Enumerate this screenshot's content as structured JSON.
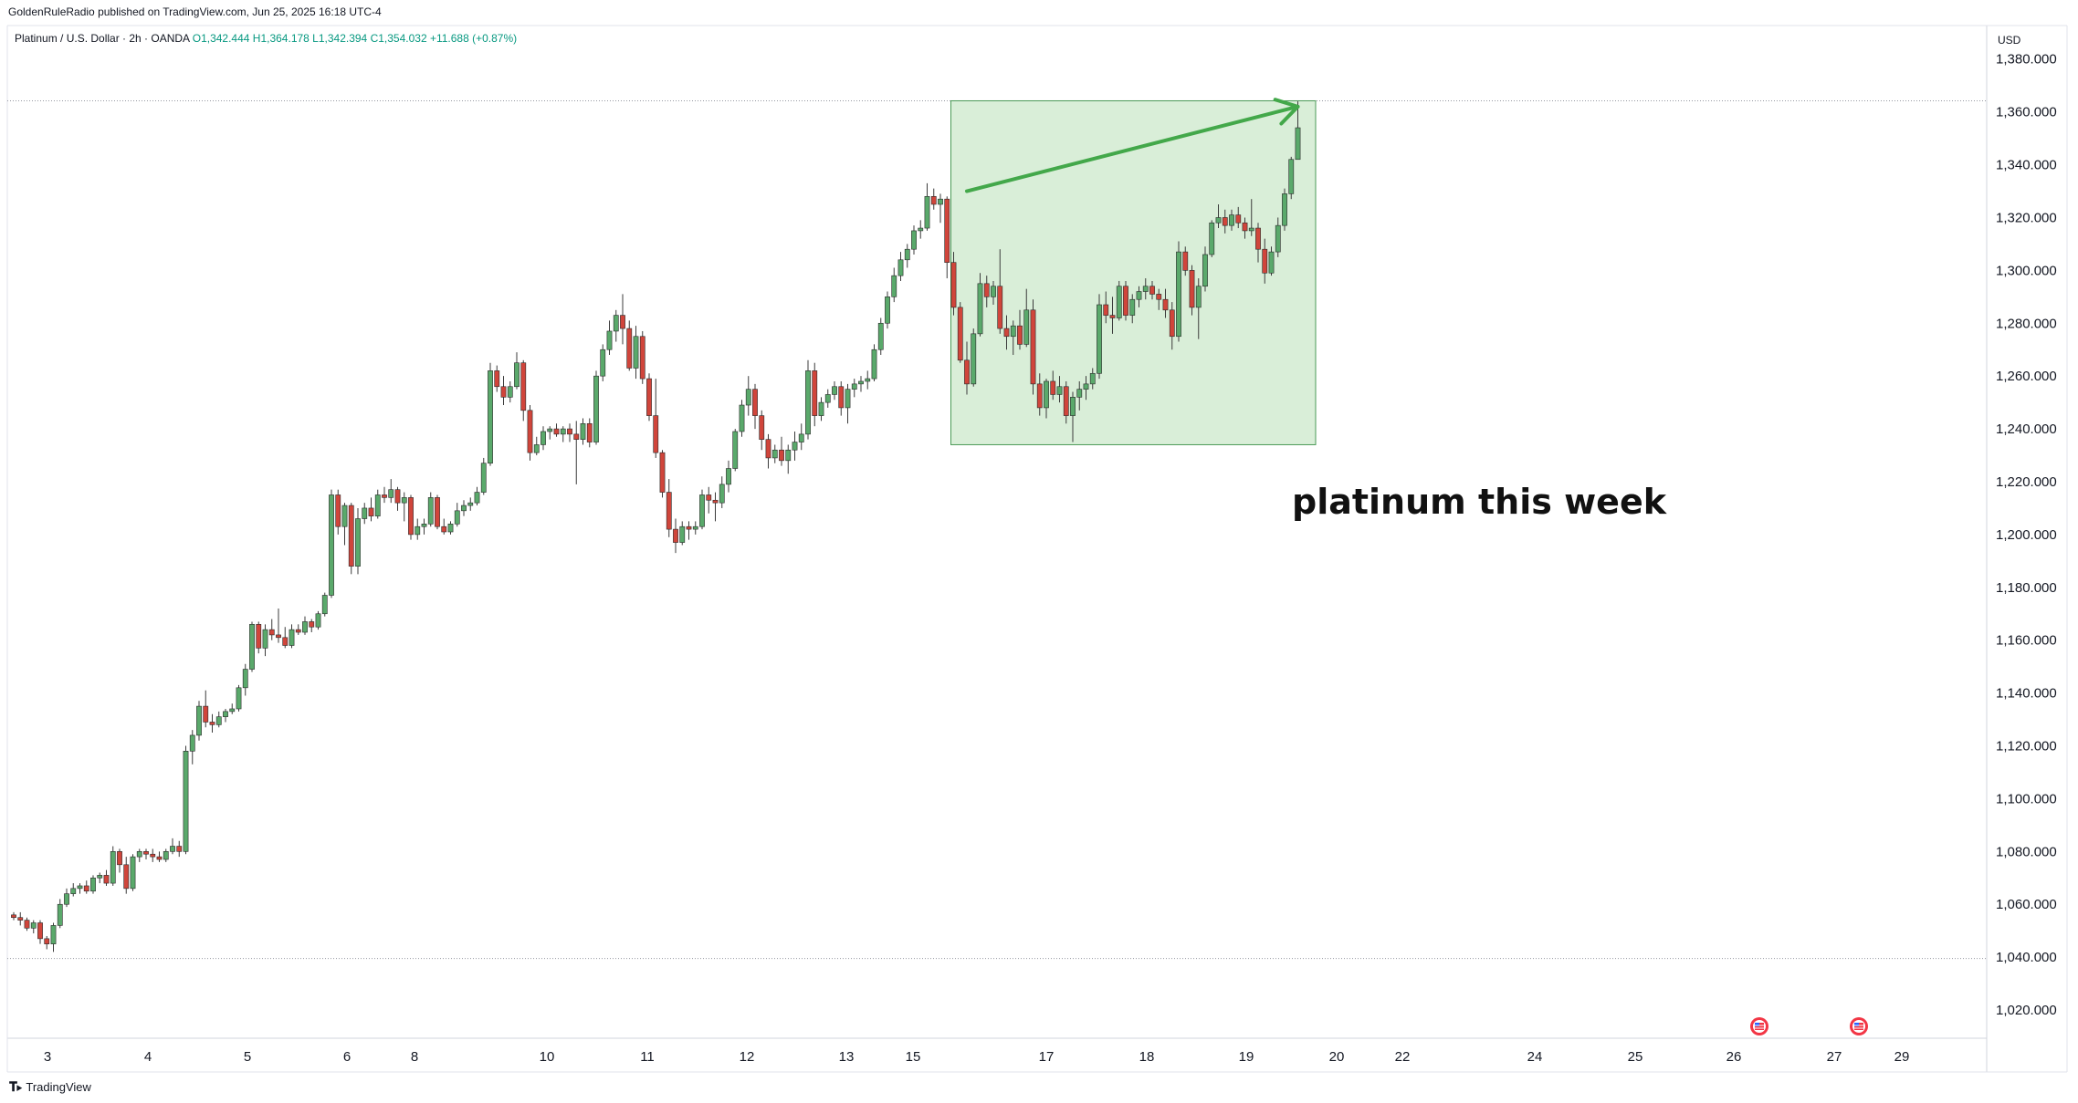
{
  "header": {
    "credit": "GoldenRuleRadio published on TradingView.com, Jun 25, 2025 16:18 UTC-4",
    "symbol_prefix": "Platinum / U.S. Dollar · 2h · OANDA",
    "ohlc": "O1,342.444  H1,364.178  L1,342.394  C1,354.032  +11.688 (+0.87%)"
  },
  "footer": {
    "brand": "TradingView",
    "brand_icon": "tradingview-logo-icon"
  },
  "colors": {
    "up": "#089981",
    "down": "#f23645",
    "up_fill": "#5aa96b",
    "down_fill": "#d0453b",
    "highlight_fill": "#d9eed8",
    "highlight_border": "#4a9a56",
    "arrow": "#43a84a"
  },
  "chart_data": {
    "type": "candlestick",
    "currency_label": "USD",
    "y_ticks": [
      "1,020.000",
      "1,040.000",
      "1,060.000",
      "1,080.000",
      "1,100.000",
      "1,120.000",
      "1,140.000",
      "1,160.000",
      "1,180.000",
      "1,200.000",
      "1,220.000",
      "1,240.000",
      "1,260.000",
      "1,280.000",
      "1,300.000",
      "1,320.000",
      "1,340.000",
      "1,360.000",
      "1,380.000"
    ],
    "ylim": [
      1010,
      1392
    ],
    "x_ticks": [
      "3",
      "4",
      "5",
      "6",
      "8",
      "10",
      "11",
      "12",
      "13",
      "15",
      "17",
      "18",
      "19",
      "20",
      "22",
      "24",
      "25",
      "26",
      "27",
      "29"
    ],
    "reference_lines": [
      1364.2,
      1039.5
    ],
    "candles": [
      [
        1056,
        1057,
        1054,
        1055
      ],
      [
        1055,
        1057,
        1052,
        1054
      ],
      [
        1054,
        1055,
        1050,
        1051
      ],
      [
        1051,
        1054,
        1049,
        1053
      ],
      [
        1053,
        1054,
        1045,
        1047
      ],
      [
        1047,
        1048,
        1043,
        1045
      ],
      [
        1045,
        1053,
        1042,
        1052
      ],
      [
        1052,
        1062,
        1051,
        1060
      ],
      [
        1060,
        1066,
        1059,
        1064
      ],
      [
        1064,
        1068,
        1063,
        1066
      ],
      [
        1066,
        1068,
        1064,
        1067
      ],
      [
        1067,
        1069,
        1064,
        1065
      ],
      [
        1065,
        1071,
        1064,
        1070
      ],
      [
        1070,
        1072,
        1068,
        1071
      ],
      [
        1071,
        1073,
        1067,
        1068
      ],
      [
        1068,
        1082,
        1067,
        1080
      ],
      [
        1080,
        1081,
        1072,
        1075
      ],
      [
        1075,
        1078,
        1064,
        1066
      ],
      [
        1066,
        1079,
        1065,
        1078
      ],
      [
        1078,
        1081,
        1076,
        1080
      ],
      [
        1080,
        1081,
        1077,
        1079
      ],
      [
        1079,
        1081,
        1076,
        1078
      ],
      [
        1078,
        1080,
        1076,
        1077
      ],
      [
        1077,
        1081,
        1076,
        1080
      ],
      [
        1080,
        1085,
        1079,
        1082
      ],
      [
        1082,
        1084,
        1078,
        1080
      ],
      [
        1080,
        1120,
        1079,
        1118
      ],
      [
        1118,
        1126,
        1113,
        1124
      ],
      [
        1124,
        1137,
        1122,
        1135
      ],
      [
        1135,
        1141,
        1127,
        1129
      ],
      [
        1129,
        1132,
        1125,
        1128
      ],
      [
        1128,
        1133,
        1127,
        1131
      ],
      [
        1131,
        1134,
        1129,
        1133
      ],
      [
        1133,
        1136,
        1132,
        1134
      ],
      [
        1134,
        1143,
        1133,
        1142
      ],
      [
        1142,
        1151,
        1139,
        1149
      ],
      [
        1149,
        1167,
        1148,
        1166
      ],
      [
        1166,
        1167,
        1155,
        1157
      ],
      [
        1157,
        1166,
        1154,
        1164
      ],
      [
        1164,
        1168,
        1160,
        1162
      ],
      [
        1162,
        1172,
        1159,
        1161
      ],
      [
        1161,
        1165,
        1157,
        1158
      ],
      [
        1158,
        1166,
        1157,
        1164
      ],
      [
        1164,
        1166,
        1162,
        1163
      ],
      [
        1163,
        1169,
        1162,
        1167
      ],
      [
        1167,
        1168,
        1163,
        1165
      ],
      [
        1165,
        1171,
        1164,
        1170
      ],
      [
        1170,
        1178,
        1169,
        1177
      ],
      [
        1177,
        1217,
        1176,
        1215
      ],
      [
        1215,
        1217,
        1200,
        1203
      ],
      [
        1203,
        1212,
        1196,
        1211
      ],
      [
        1211,
        1212,
        1185,
        1188
      ],
      [
        1188,
        1210,
        1185,
        1206
      ],
      [
        1206,
        1212,
        1204,
        1210
      ],
      [
        1210,
        1214,
        1205,
        1207
      ],
      [
        1207,
        1217,
        1206,
        1215
      ],
      [
        1215,
        1218,
        1212,
        1214
      ],
      [
        1214,
        1221,
        1212,
        1217
      ],
      [
        1217,
        1218,
        1209,
        1212
      ],
      [
        1212,
        1216,
        1205,
        1214
      ],
      [
        1214,
        1215,
        1198,
        1200
      ],
      [
        1200,
        1206,
        1198,
        1203
      ],
      [
        1203,
        1206,
        1200,
        1204
      ],
      [
        1204,
        1216,
        1203,
        1214
      ],
      [
        1214,
        1215,
        1202,
        1203
      ],
      [
        1203,
        1206,
        1200,
        1201
      ],
      [
        1201,
        1205,
        1200,
        1204
      ],
      [
        1204,
        1212,
        1203,
        1209
      ],
      [
        1209,
        1213,
        1207,
        1211
      ],
      [
        1211,
        1214,
        1209,
        1212
      ],
      [
        1212,
        1218,
        1211,
        1216
      ],
      [
        1216,
        1229,
        1215,
        1227
      ],
      [
        1227,
        1265,
        1226,
        1262
      ],
      [
        1262,
        1264,
        1254,
        1256
      ],
      [
        1256,
        1260,
        1249,
        1252
      ],
      [
        1252,
        1258,
        1250,
        1256
      ],
      [
        1256,
        1269,
        1255,
        1265
      ],
      [
        1265,
        1266,
        1243,
        1247
      ],
      [
        1247,
        1249,
        1228,
        1231
      ],
      [
        1231,
        1237,
        1230,
        1234
      ],
      [
        1234,
        1241,
        1232,
        1239
      ],
      [
        1239,
        1241,
        1236,
        1240
      ],
      [
        1240,
        1242,
        1237,
        1238
      ],
      [
        1238,
        1241,
        1235,
        1240
      ],
      [
        1240,
        1242,
        1235,
        1238
      ],
      [
        1238,
        1243,
        1219,
        1236
      ],
      [
        1236,
        1244,
        1234,
        1242
      ],
      [
        1242,
        1244,
        1233,
        1235
      ],
      [
        1235,
        1262,
        1234,
        1260
      ],
      [
        1260,
        1272,
        1258,
        1270
      ],
      [
        1270,
        1281,
        1268,
        1277
      ],
      [
        1277,
        1285,
        1273,
        1283
      ],
      [
        1283,
        1291,
        1272,
        1278
      ],
      [
        1278,
        1281,
        1262,
        1263
      ],
      [
        1263,
        1279,
        1259,
        1275
      ],
      [
        1275,
        1277,
        1257,
        1259
      ],
      [
        1259,
        1261,
        1243,
        1245
      ],
      [
        1245,
        1259,
        1229,
        1231
      ],
      [
        1231,
        1232,
        1214,
        1216
      ],
      [
        1216,
        1221,
        1199,
        1202
      ],
      [
        1202,
        1206,
        1193,
        1197
      ],
      [
        1197,
        1205,
        1196,
        1203
      ],
      [
        1203,
        1205,
        1198,
        1202
      ],
      [
        1202,
        1205,
        1200,
        1203
      ],
      [
        1203,
        1217,
        1202,
        1215
      ],
      [
        1215,
        1218,
        1208,
        1213
      ],
      [
        1213,
        1216,
        1205,
        1212
      ],
      [
        1212,
        1222,
        1210,
        1219
      ],
      [
        1219,
        1228,
        1216,
        1225
      ],
      [
        1225,
        1240,
        1224,
        1239
      ],
      [
        1239,
        1251,
        1237,
        1249
      ],
      [
        1249,
        1260,
        1245,
        1255
      ],
      [
        1255,
        1257,
        1240,
        1245
      ],
      [
        1245,
        1247,
        1232,
        1236
      ],
      [
        1236,
        1238,
        1225,
        1229
      ],
      [
        1229,
        1234,
        1227,
        1232
      ],
      [
        1232,
        1237,
        1226,
        1228
      ],
      [
        1228,
        1234,
        1223,
        1232
      ],
      [
        1232,
        1239,
        1228,
        1235
      ],
      [
        1235,
        1242,
        1232,
        1238
      ],
      [
        1238,
        1266,
        1236,
        1262
      ],
      [
        1262,
        1265,
        1241,
        1245
      ],
      [
        1245,
        1252,
        1243,
        1250
      ],
      [
        1250,
        1255,
        1248,
        1253
      ],
      [
        1253,
        1258,
        1251,
        1256
      ],
      [
        1256,
        1258,
        1245,
        1248
      ],
      [
        1248,
        1257,
        1242,
        1255
      ],
      [
        1255,
        1259,
        1252,
        1257
      ],
      [
        1257,
        1260,
        1254,
        1258
      ],
      [
        1258,
        1262,
        1255,
        1259
      ],
      [
        1259,
        1272,
        1258,
        1270
      ],
      [
        1270,
        1282,
        1268,
        1280
      ],
      [
        1280,
        1292,
        1278,
        1290
      ],
      [
        1290,
        1301,
        1288,
        1298
      ],
      [
        1298,
        1307,
        1296,
        1304
      ],
      [
        1304,
        1310,
        1301,
        1308
      ],
      [
        1308,
        1317,
        1306,
        1315
      ],
      [
        1315,
        1319,
        1312,
        1316
      ],
      [
        1316,
        1333,
        1315,
        1328
      ],
      [
        1328,
        1331,
        1323,
        1325
      ],
      [
        1325,
        1329,
        1318,
        1327
      ],
      [
        1327,
        1328,
        1297,
        1303
      ],
      [
        1303,
        1307,
        1283,
        1286
      ],
      [
        1286,
        1288,
        1265,
        1266
      ],
      [
        1266,
        1273,
        1253,
        1257
      ],
      [
        1257,
        1278,
        1256,
        1276
      ],
      [
        1276,
        1299,
        1275,
        1295
      ],
      [
        1295,
        1298,
        1286,
        1290
      ],
      [
        1290,
        1296,
        1287,
        1294
      ],
      [
        1294,
        1308,
        1276,
        1278
      ],
      [
        1278,
        1283,
        1270,
        1275
      ],
      [
        1275,
        1281,
        1268,
        1279
      ],
      [
        1279,
        1285,
        1270,
        1272
      ],
      [
        1272,
        1293,
        1271,
        1285
      ],
      [
        1285,
        1289,
        1253,
        1257
      ],
      [
        1257,
        1261,
        1245,
        1248
      ],
      [
        1248,
        1259,
        1244,
        1258
      ],
      [
        1258,
        1262,
        1251,
        1253
      ],
      [
        1253,
        1260,
        1250,
        1256
      ],
      [
        1256,
        1258,
        1242,
        1245
      ],
      [
        1245,
        1254,
        1235,
        1252
      ],
      [
        1252,
        1258,
        1247,
        1255
      ],
      [
        1255,
        1260,
        1251,
        1257
      ],
      [
        1257,
        1263,
        1255,
        1261
      ],
      [
        1261,
        1291,
        1259,
        1287
      ],
      [
        1287,
        1292,
        1280,
        1283
      ],
      [
        1283,
        1290,
        1276,
        1282
      ],
      [
        1282,
        1296,
        1281,
        1294
      ],
      [
        1294,
        1296,
        1281,
        1283
      ],
      [
        1283,
        1291,
        1280,
        1289
      ],
      [
        1289,
        1294,
        1286,
        1292
      ],
      [
        1292,
        1297,
        1289,
        1294
      ],
      [
        1294,
        1296,
        1289,
        1291
      ],
      [
        1291,
        1293,
        1285,
        1289
      ],
      [
        1289,
        1293,
        1282,
        1285
      ],
      [
        1285,
        1288,
        1270,
        1275
      ],
      [
        1275,
        1311,
        1273,
        1307
      ],
      [
        1307,
        1309,
        1298,
        1300
      ],
      [
        1300,
        1302,
        1283,
        1286
      ],
      [
        1286,
        1297,
        1274,
        1294
      ],
      [
        1294,
        1309,
        1292,
        1306
      ],
      [
        1306,
        1319,
        1305,
        1318
      ],
      [
        1318,
        1325,
        1316,
        1320
      ],
      [
        1320,
        1323,
        1314,
        1317
      ],
      [
        1317,
        1323,
        1315,
        1321
      ],
      [
        1321,
        1324,
        1316,
        1318
      ],
      [
        1318,
        1320,
        1312,
        1315
      ],
      [
        1315,
        1327,
        1313,
        1316
      ],
      [
        1316,
        1318,
        1303,
        1308
      ],
      [
        1308,
        1312,
        1295,
        1299
      ],
      [
        1299,
        1309,
        1298,
        1307
      ],
      [
        1307,
        1320,
        1305,
        1317
      ],
      [
        1317,
        1331,
        1315,
        1329
      ],
      [
        1329,
        1343,
        1327,
        1342
      ],
      [
        1342,
        1364,
        1342,
        1354
      ]
    ],
    "annotations": {
      "text": "platinum this week",
      "box": {
        "from_index": 142,
        "to_index": 196,
        "low": 1234,
        "high": 1364.2
      }
    }
  }
}
